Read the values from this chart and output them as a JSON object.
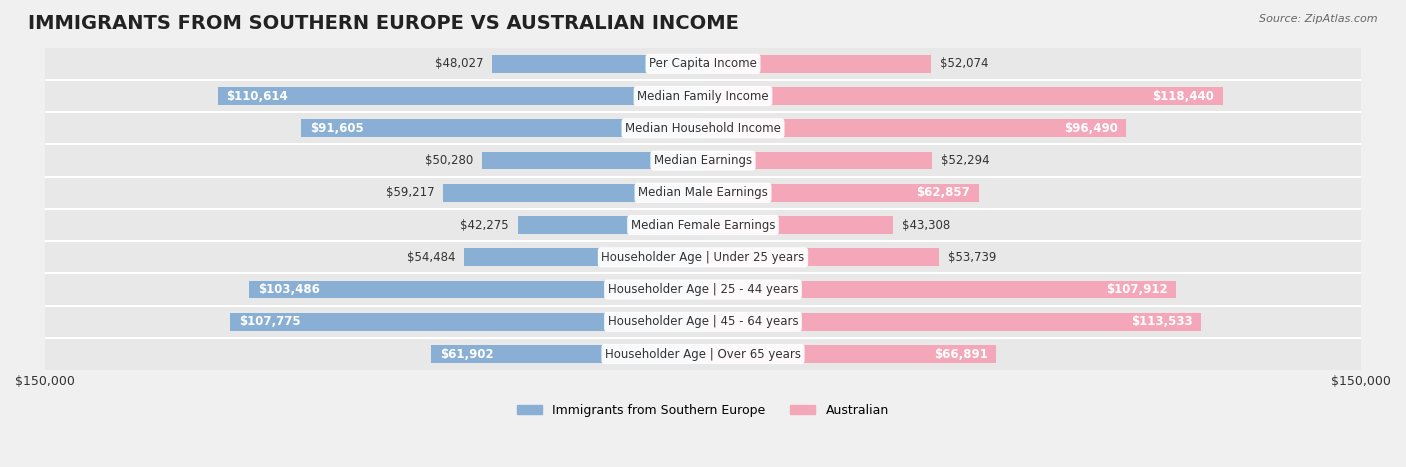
{
  "title": "IMMIGRANTS FROM SOUTHERN EUROPE VS AUSTRALIAN INCOME",
  "source": "Source: ZipAtlas.com",
  "categories": [
    "Per Capita Income",
    "Median Family Income",
    "Median Household Income",
    "Median Earnings",
    "Median Male Earnings",
    "Median Female Earnings",
    "Householder Age | Under 25 years",
    "Householder Age | 25 - 44 years",
    "Householder Age | 45 - 64 years",
    "Householder Age | Over 65 years"
  ],
  "immigrants_values": [
    48027,
    110614,
    91605,
    50280,
    59217,
    42275,
    54484,
    103486,
    107775,
    61902
  ],
  "australian_values": [
    52074,
    118440,
    96490,
    52294,
    62857,
    43308,
    53739,
    107912,
    113533,
    66891
  ],
  "immigrants_labels": [
    "$48,027",
    "$110,614",
    "$91,605",
    "$50,280",
    "$59,217",
    "$42,275",
    "$54,484",
    "$103,486",
    "$107,775",
    "$61,902"
  ],
  "australian_labels": [
    "$52,074",
    "$118,440",
    "$96,490",
    "$52,294",
    "$62,857",
    "$43,308",
    "$53,739",
    "$107,912",
    "$113,533",
    "$66,891"
  ],
  "max_value": 150000,
  "color_immigrants": "#89afd4",
  "color_australian": "#f4a7b9",
  "color_immigrants_dark": "#5b8fc4",
  "color_australian_dark": "#f07090",
  "bar_height": 0.55,
  "background_color": "#f5f5f5",
  "row_bg_color": "#e8e8e8",
  "label_bg_color": "#ffffff",
  "title_fontsize": 14,
  "label_fontsize": 8.5,
  "value_fontsize": 8.5,
  "legend_fontsize": 9
}
